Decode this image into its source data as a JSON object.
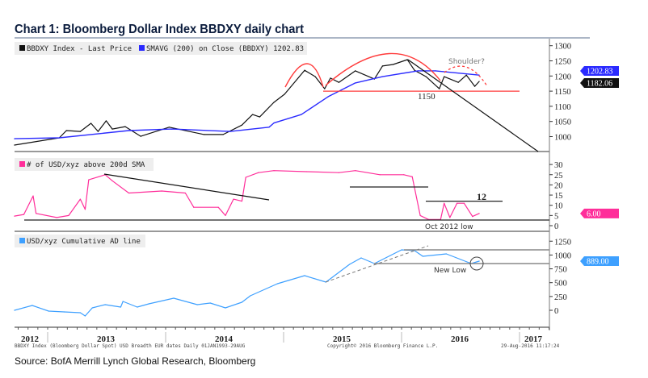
{
  "title": "Chart 1: Bloomberg Dollar Index BBDXY daily chart",
  "source": "Source: BofA Merrill Lynch Global Research, Bloomberg",
  "footer": {
    "left": "BBDXY Index (Bloomberg Dollar Spot) USD Breadth EUR dates  Daily 01JAN1993-29AUG",
    "center": "Copyright© 2016 Bloomberg Finance L.P.",
    "right": "29-Aug-2016 11:17:24"
  },
  "colors": {
    "price": "#111111",
    "sma": "#2b2bff",
    "breadth": "#ff2e9a",
    "ad": "#3ea0ff",
    "annotation": "#ff3b3b",
    "title": "#0b1c3d"
  },
  "chart_data": [
    {
      "type": "line",
      "panel": "top",
      "legend": [
        {
          "label": "BBDXY Index - Last Price",
          "color": "#111111"
        },
        {
          "label": "SMAVG (200) on Close (BBDXY) 1202.83",
          "color": "#2b2bff"
        }
      ],
      "ylim": [
        950,
        1320
      ],
      "yticks": [
        "1300",
        "1250",
        "1200",
        "1150",
        "1100",
        "1050",
        "1000"
      ],
      "last_value_tags": [
        {
          "label": "1202.83",
          "value": 1202.83,
          "color": "#2b2bff"
        },
        {
          "label": "1182.06",
          "value": 1182.06,
          "color": "#111111"
        }
      ],
      "annotations": {
        "support_label": "1150",
        "support_level": 1150,
        "shoulder_label": "Shoulder?"
      },
      "series": [
        {
          "name": "BBDXY Index - Last Price",
          "x": [
            "2012-09-20",
            "2013-02-06",
            "2013-02-28",
            "2013-04-12",
            "2013-05-15",
            "2013-06-06",
            "2013-07-01",
            "2013-07-20",
            "2013-08-29",
            "2013-10-16",
            "2014-01-12",
            "2014-04-30",
            "2014-06-28",
            "2014-08-25",
            "2014-09-27",
            "2014-10-19",
            "2014-12-02",
            "2015-01-04",
            "2015-03-07",
            "2015-04-09",
            "2015-05-08",
            "2015-05-26",
            "2015-06-21",
            "2015-08-11",
            "2015-10-09",
            "2015-11-03",
            "2015-12-06",
            "2016-01-19",
            "2016-02-10",
            "2016-03-17",
            "2016-04-27",
            "2016-05-12",
            "2016-06-25",
            "2016-07-20",
            "2016-08-15",
            "2016-08-29"
          ],
          "y": [
            972,
            996,
            1020,
            1017,
            1044,
            1017,
            1052,
            1025,
            1033,
            1001,
            1031,
            1007,
            1007,
            1038,
            1073,
            1065,
            1113,
            1140,
            1219,
            1198,
            1158,
            1193,
            1179,
            1217,
            1190,
            1233,
            1238,
            1254,
            1219,
            1198,
            1158,
            1198,
            1179,
            1203,
            1166,
            1182.06
          ]
        },
        {
          "name": "SMAVG (200) on Close (BBDXY)",
          "x": [
            "2012-09-20",
            "2013-02-06",
            "2013-09-09",
            "2014-01-20",
            "2014-07-20",
            "2014-11-17",
            "2014-12-02",
            "2015-02-25",
            "2015-05-19",
            "2015-08-11",
            "2015-11-03",
            "2016-02-21",
            "2016-04-15",
            "2016-08-29"
          ],
          "y": [
            993,
            996,
            1020,
            1025,
            1017,
            1031,
            1045,
            1073,
            1132,
            1177,
            1198,
            1217,
            1217,
            1202.83
          ]
        }
      ]
    },
    {
      "type": "line",
      "panel": "middle",
      "legend": [
        {
          "label": "# of USD/xyz above 200d SMA",
          "color": "#ff2e9a"
        }
      ],
      "ylim": [
        -1,
        33
      ],
      "yticks": [
        "30",
        "25",
        "20",
        "15",
        "10",
        "5",
        "0"
      ],
      "last_value_tags": [
        {
          "label": "6.00",
          "value": 6,
          "color": "#ff2e9a"
        }
      ],
      "annotations": {
        "resistance_label": "12",
        "resistance_level": 12,
        "low_label": "Oct 2012 low"
      },
      "series": [
        {
          "name": "# of USD/xyz above 200d SMA",
          "x": [
            "2012-09-20",
            "2012-10-19",
            "2012-11-17",
            "2012-11-26",
            "2013-01-29",
            "2013-03-07",
            "2013-04-12",
            "2013-04-27",
            "2013-05-08",
            "2013-06-28",
            "2013-07-20",
            "2013-09-09",
            "2013-12-20",
            "2014-03-03",
            "2014-03-29",
            "2014-06-13",
            "2014-07-05",
            "2014-07-30",
            "2014-08-25",
            "2014-09-06",
            "2014-10-15",
            "2014-12-02",
            "2015-03-14",
            "2015-06-21",
            "2015-08-11",
            "2015-10-26",
            "2016-01-08",
            "2016-02-03",
            "2016-02-28",
            "2016-03-25",
            "2016-05-01",
            "2016-05-12",
            "2016-05-30",
            "2016-06-21",
            "2016-07-13",
            "2016-08-08",
            "2016-08-29"
          ],
          "y": [
            4.7,
            5.5,
            14.6,
            6,
            4,
            5,
            13,
            8,
            22.5,
            25,
            22,
            16,
            17,
            16,
            9,
            9,
            5,
            13,
            12,
            23.7,
            26,
            27,
            26.5,
            26,
            27,
            25,
            25,
            24,
            5,
            3,
            3,
            11,
            4,
            11,
            11,
            4.5,
            6
          ]
        }
      ]
    },
    {
      "type": "line",
      "panel": "bottom",
      "legend": [
        {
          "label": "USD/xyz Cumulative AD line",
          "color": "#3ea0ff"
        }
      ],
      "ylim": [
        -250,
        1400
      ],
      "yticks": [
        "1250",
        "1000",
        "750",
        "500",
        "250",
        "0"
      ],
      "last_value_tags": [
        {
          "label": "889.00",
          "value": 889,
          "color": "#3ea0ff"
        }
      ],
      "annotations": {
        "new_low_label": "New Low"
      },
      "series": [
        {
          "name": "USD/xyz Cumulative AD line",
          "x": [
            "2012-09-20",
            "2012-11-14",
            "2013-01-04",
            "2013-02-21",
            "2013-04-12",
            "2013-04-27",
            "2013-05-19",
            "2013-06-28",
            "2013-08-15",
            "2013-08-22",
            "2013-10-05",
            "2013-11-10",
            "2014-01-26",
            "2014-04-09",
            "2014-05-19",
            "2014-07-05",
            "2014-08-25",
            "2014-09-20",
            "2014-12-13",
            "2015-03-07",
            "2015-05-12",
            "2015-07-24",
            "2015-08-29",
            "2015-10-09",
            "2016-01-01",
            "2016-02-10",
            "2016-03-07",
            "2016-05-19",
            "2016-08-04",
            "2016-08-29"
          ],
          "y": [
            0,
            87,
            -15,
            -29,
            -44,
            -102,
            44,
            102,
            58,
            160,
            58,
            117,
            219,
            102,
            131,
            44,
            146,
            262,
            481,
            627,
            510,
            831,
            948,
            845,
            1093,
            1080,
            977,
            1020,
            845,
            889
          ]
        }
      ]
    }
  ],
  "x_axis": {
    "years": [
      "2012",
      "2013",
      "2014",
      "2015",
      "2016",
      "2017"
    ]
  }
}
